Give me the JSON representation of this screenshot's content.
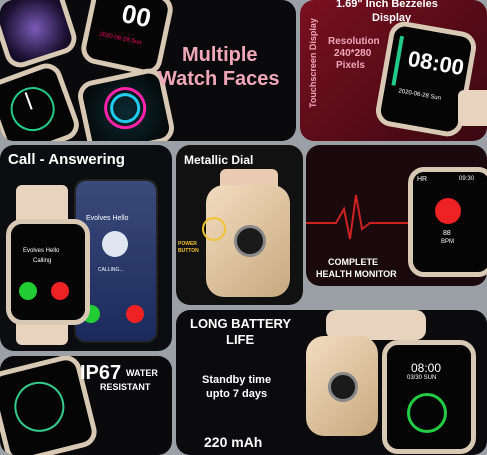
{
  "faces": {
    "title_line1": "Multiple",
    "title_line2": "Watch Faces",
    "clock_big": "00",
    "date_small": "2020-06-28 Sun"
  },
  "bezel": {
    "heading_line1": "1.69\" Inch Bezzeles",
    "heading_line2": "Display",
    "side_label": "Touchscreen Display",
    "res_line1": "Resolution",
    "res_line2": "240*280",
    "res_line3": "Pixels",
    "time": "08:00",
    "date": "2020-06-28 Sun"
  },
  "call": {
    "title": "Call - Answering",
    "caller_watch": "Evolves Hello",
    "caller_watch_sub": "Calling",
    "caller_phone": "Evolves Hello",
    "calling": "CALLING..."
  },
  "metal": {
    "title": "Metallic Dial",
    "button_label_1": "POWER",
    "button_label_2": "BUTTON"
  },
  "health": {
    "label_line1": "COMPLETE",
    "label_line2": "HEALTH MONITOR",
    "hr": "HR",
    "time": "09:30",
    "bpm_value": "88",
    "bpm_unit": "BPM"
  },
  "battery": {
    "title_line1": "LONG BATTERY",
    "title_line2": "LIFE",
    "standby_line1": "Standby time",
    "standby_line2": "upto 7 days",
    "capacity": "220 mAh",
    "time": "08:00",
    "date": "03/30 SUN"
  },
  "ip67": {
    "big": "IP67",
    "small_line1": "WATER",
    "small_line2": "RESISTANT"
  }
}
